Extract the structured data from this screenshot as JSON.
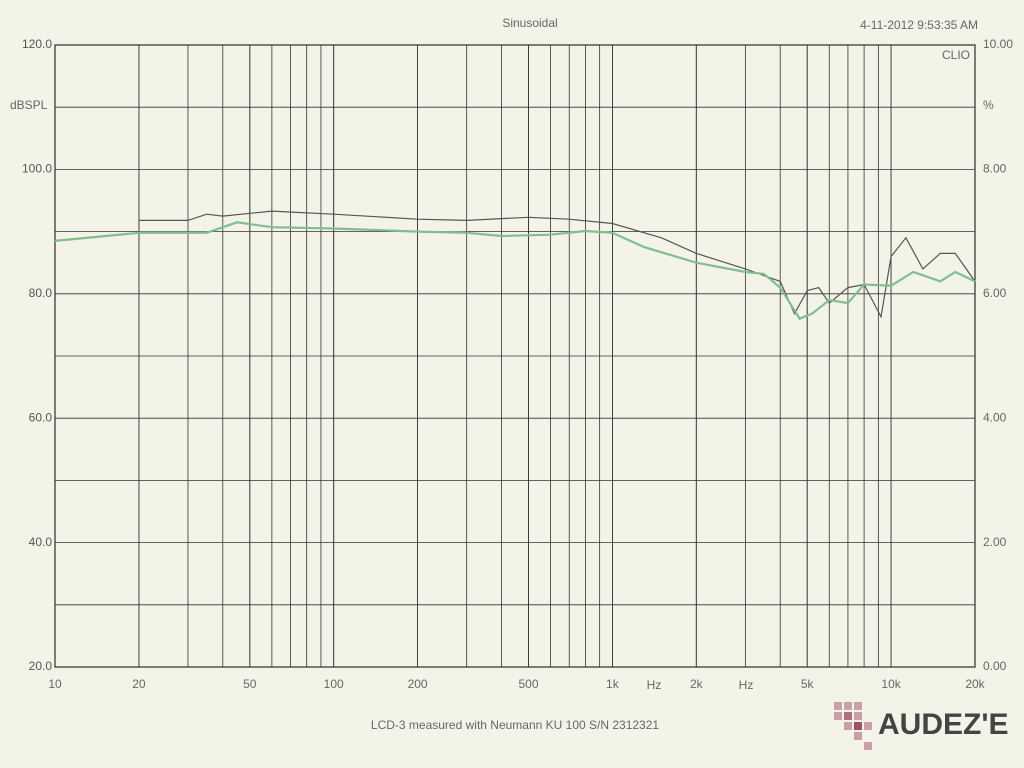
{
  "chart_data": {
    "type": "line",
    "title": "Sinusoidal",
    "timestamp": "4-11-2012 9:53:35 AM",
    "brand": "CLIO",
    "ylabel": "dBSPL",
    "y2label": "%",
    "xunit": [
      "Hz",
      "Hz"
    ],
    "caption": "LCD-3 measured with Neumann KU 100   S/N 2312321",
    "logo": "AUDEZ'E",
    "log_x": true,
    "grid": true,
    "xlim": [
      10,
      20000
    ],
    "xticks": [
      10,
      20,
      50,
      100,
      200,
      500,
      {
        "value": 1000,
        "label": "1k"
      },
      {
        "value": 2000,
        "label": "2k"
      },
      {
        "value": 5000,
        "label": "5k"
      },
      {
        "value": 10000,
        "label": "10k"
      },
      {
        "value": 20000,
        "label": "20k"
      }
    ],
    "ylim": [
      20,
      120
    ],
    "yticks": [
      {
        "value": 20,
        "label": "20.0"
      },
      {
        "value": 40,
        "label": "40.0"
      },
      {
        "value": 60,
        "label": "60.0"
      },
      {
        "value": 80,
        "label": "80.0"
      },
      {
        "value": 100,
        "label": "100.0"
      },
      {
        "value": 120,
        "label": "120.0"
      }
    ],
    "yminor": [
      30,
      50,
      70,
      90,
      110
    ],
    "y2lim": [
      0,
      10
    ],
    "y2ticks": [
      {
        "value": 0,
        "label": "0.00"
      },
      {
        "value": 2,
        "label": "2.00"
      },
      {
        "value": 4,
        "label": "4.00"
      },
      {
        "value": 6,
        "label": "6.00"
      },
      {
        "value": 8,
        "label": "8.00"
      },
      {
        "value": 10,
        "label": "10.00"
      }
    ],
    "series": [
      {
        "color": "#555555",
        "x": [
          20,
          30,
          35,
          40,
          60,
          100,
          200,
          300,
          500,
          700,
          1000,
          1500,
          2000,
          3000,
          4000,
          4500,
          5000,
          5500,
          6000,
          7000,
          8000,
          9200,
          10000,
          11300,
          13000,
          15000,
          17000,
          20000
        ],
        "values": [
          91.8,
          91.8,
          92.8,
          92.5,
          93.3,
          92.8,
          92,
          91.8,
          92.3,
          92,
          91.3,
          89,
          86.5,
          84,
          82,
          76.8,
          80.5,
          81,
          78.5,
          81,
          81.5,
          76.3,
          86,
          89,
          84,
          86.5,
          86.5,
          82
        ]
      },
      {
        "color": "#7fbf8f",
        "x": [
          10,
          20,
          35,
          45,
          60,
          100,
          200,
          300,
          400,
          600,
          800,
          1000,
          1300,
          2000,
          3000,
          3500,
          4000,
          4700,
          5200,
          6000,
          7000,
          8000,
          10000,
          12000,
          14000,
          15000,
          17000,
          20000
        ],
        "values": [
          88.5,
          89.8,
          89.8,
          91.5,
          90.7,
          90.5,
          90,
          89.8,
          89.3,
          89.5,
          90.1,
          89.8,
          87.5,
          85,
          83.5,
          83.2,
          81,
          76,
          76.8,
          79,
          78.5,
          81.5,
          81.3,
          83.5,
          82.5,
          82,
          83.5,
          82
        ]
      }
    ]
  }
}
